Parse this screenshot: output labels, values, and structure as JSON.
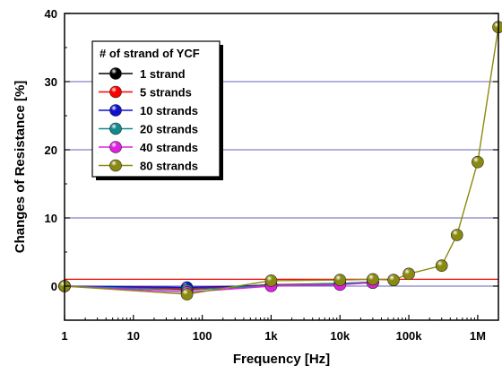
{
  "chart_data": {
    "type": "line",
    "xlabel": "Frequency [Hz]",
    "ylabel": "Changes of Resistance [%]",
    "x_scale": "log",
    "xlim": [
      1,
      2000000
    ],
    "ylim": [
      -5,
      40
    ],
    "x_ticks": [
      {
        "value": 1,
        "label": "1"
      },
      {
        "value": 10,
        "label": "10"
      },
      {
        "value": 100,
        "label": "100"
      },
      {
        "value": 1000,
        "label": "1k"
      },
      {
        "value": 10000,
        "label": "10k"
      },
      {
        "value": 100000,
        "label": "100k"
      },
      {
        "value": 1000000,
        "label": "1M"
      }
    ],
    "y_ticks": [
      {
        "value": 0,
        "label": "0"
      },
      {
        "value": 10,
        "label": "10"
      },
      {
        "value": 20,
        "label": "20"
      },
      {
        "value": 30,
        "label": "30"
      },
      {
        "value": 40,
        "label": "40"
      }
    ],
    "grid": "horizontal",
    "grid_color": "#2f2f9f",
    "reference_line": {
      "y": 1,
      "color": "#ff0000"
    },
    "legend": {
      "title": "# of strand of YCF",
      "position": "top-left"
    },
    "series": [
      {
        "name": "1 strand",
        "color": "#000000",
        "x": [
          1,
          60,
          1000,
          10000,
          30000
        ],
        "y": [
          0.0,
          -0.5,
          0.2,
          0.3,
          0.5
        ]
      },
      {
        "name": "5 strands",
        "color": "#ff0000",
        "x": [
          1,
          60,
          1000,
          10000,
          30000
        ],
        "y": [
          0.0,
          -0.4,
          0.2,
          0.4,
          0.6
        ]
      },
      {
        "name": "10 strands",
        "color": "#1010d0",
        "x": [
          1,
          60,
          1000,
          10000,
          30000
        ],
        "y": [
          0.0,
          -0.2,
          0.1,
          0.3,
          0.5
        ]
      },
      {
        "name": "20 strands",
        "color": "#108a8a",
        "x": [
          1,
          60,
          1000,
          10000,
          30000
        ],
        "y": [
          0.0,
          -0.6,
          0.1,
          0.4,
          0.6
        ]
      },
      {
        "name": "40 strands",
        "color": "#e020e0",
        "x": [
          1,
          60,
          1000,
          10000,
          30000
        ],
        "y": [
          0.0,
          -0.9,
          0.0,
          0.2,
          0.5
        ]
      },
      {
        "name": "80 strands",
        "color": "#8a8a10",
        "x": [
          1,
          60,
          1000,
          10000,
          30000,
          60000,
          100000,
          300000,
          500000,
          1000000,
          2000000
        ],
        "y": [
          0.0,
          -1.2,
          0.8,
          0.9,
          1.0,
          0.9,
          1.8,
          3.0,
          7.5,
          18.2,
          38.0
        ]
      }
    ]
  }
}
